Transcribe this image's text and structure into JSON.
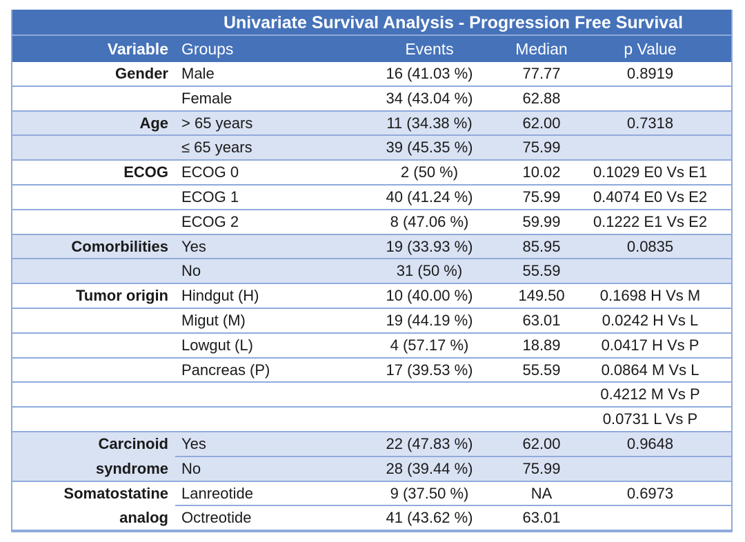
{
  "table": {
    "title": "Univariate Survival Analysis - Progression Free Survival",
    "columns": [
      "Variable",
      "Groups",
      "Events",
      "Median",
      "p Value"
    ],
    "rows": [
      {
        "variable": "Gender",
        "group": "Male",
        "events": "16 (41.03 %)",
        "median": "77.77",
        "p_value": "0.8919"
      },
      {
        "variable": "",
        "group": "Female",
        "events": "34 (43.04 %)",
        "median": "62.88",
        "p_value": ""
      },
      {
        "variable": "Age",
        "group": "> 65 years",
        "events": "11 (34.38 %)",
        "median": "62.00",
        "p_value": "0.7318"
      },
      {
        "variable": "",
        "group": "≤ 65 years",
        "events": "39 (45.35 %)",
        "median": "75.99",
        "p_value": ""
      },
      {
        "variable": "ECOG",
        "group": "ECOG 0",
        "events": "2 (50 %)",
        "median": "10.02",
        "p_value": "0.1029 E0 Vs E1"
      },
      {
        "variable": "",
        "group": "ECOG 1",
        "events": "40 (41.24 %)",
        "median": "75.99",
        "p_value": "0.4074 E0 Vs E2"
      },
      {
        "variable": "",
        "group": "ECOG 2",
        "events": "8 (47.06 %)",
        "median": "59.99",
        "p_value": "0.1222 E1 Vs E2"
      },
      {
        "variable": "Comorbilities",
        "group": "Yes",
        "events": "19 (33.93 %)",
        "median": "85.95",
        "p_value": "0.0835"
      },
      {
        "variable": "",
        "group": "No",
        "events": "31 (50 %)",
        "median": "55.59",
        "p_value": ""
      },
      {
        "variable": "Tumor origin",
        "group": "Hindgut (H)",
        "events": "10 (40.00 %)",
        "median": "149.50",
        "p_value": "0.1698 H Vs M"
      },
      {
        "variable": "",
        "group": "Migut (M)",
        "events": "19 (44.19 %)",
        "median": "63.01",
        "p_value": "0.0242 H Vs L"
      },
      {
        "variable": "",
        "group": "Lowgut (L)",
        "events": "4 (57.17 %)",
        "median": "18.89",
        "p_value": "0.0417 H Vs P"
      },
      {
        "variable": "",
        "group": "Pancreas (P)",
        "events": "17 (39.53 %)",
        "median": "55.59",
        "p_value": "0.0864 M Vs L"
      },
      {
        "variable": "",
        "group": "",
        "events": "",
        "median": "",
        "p_value": "0.4212 M Vs P"
      },
      {
        "variable": "",
        "group": "",
        "events": "",
        "median": "",
        "p_value": "0.0731 L Vs P"
      },
      {
        "variable": "Carcinoid",
        "group": "Yes",
        "events": "22 (47.83 %)",
        "median": "62.00",
        "p_value": "0.9648"
      },
      {
        "variable": "syndrome",
        "group": "No",
        "events": "28 (39.44 %)",
        "median": "75.99",
        "p_value": ""
      },
      {
        "variable": "Somatostatine",
        "group": "Lanreotide",
        "events": "9 (37.50 %)",
        "median": "NA",
        "p_value": "0.6973"
      },
      {
        "variable": "analog",
        "group": "Octreotide",
        "events": "41 (43.62 %)",
        "median": "63.01",
        "p_value": ""
      }
    ],
    "colors": {
      "header_bg": "#4572B9",
      "header_text": "#ffffff",
      "band_bg": "#D9E2F3",
      "grid_line": "#8FAADC",
      "body_text": "#1a1a1a"
    }
  }
}
